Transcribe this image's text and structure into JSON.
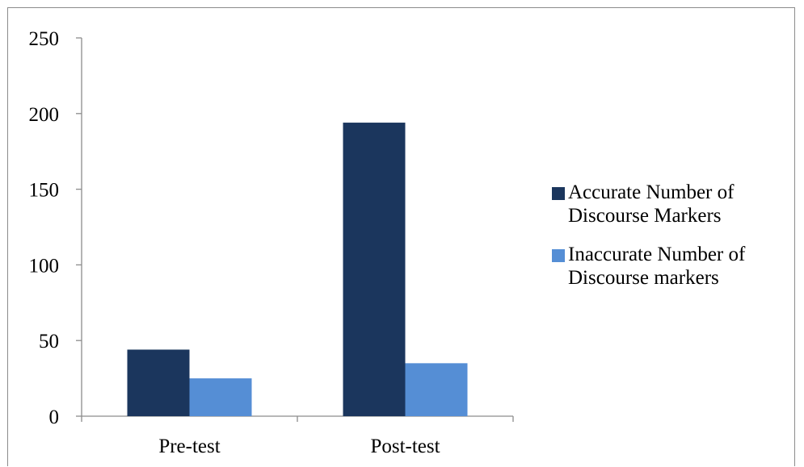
{
  "chart_data": {
    "type": "bar",
    "title": "",
    "xlabel": "",
    "ylabel": "",
    "categories": [
      "Pre-test",
      "Post-test"
    ],
    "series": [
      {
        "name": "Accurate Number of Discourse Markers",
        "name_lines": [
          "Accurate Number of",
          "Discourse Markers"
        ],
        "values": [
          44,
          194
        ],
        "color": "#1b365d"
      },
      {
        "name": "Inaccurate Number of Discourse markers",
        "name_lines": [
          "Inaccurate Number of",
          "Discourse markers"
        ],
        "values": [
          25,
          35
        ],
        "color": "#558ed5"
      }
    ],
    "ylim": [
      0,
      250
    ],
    "yticks": [
      "0",
      "50",
      "100",
      "150",
      "200",
      "250"
    ],
    "grid": false,
    "legend_position": "right"
  }
}
